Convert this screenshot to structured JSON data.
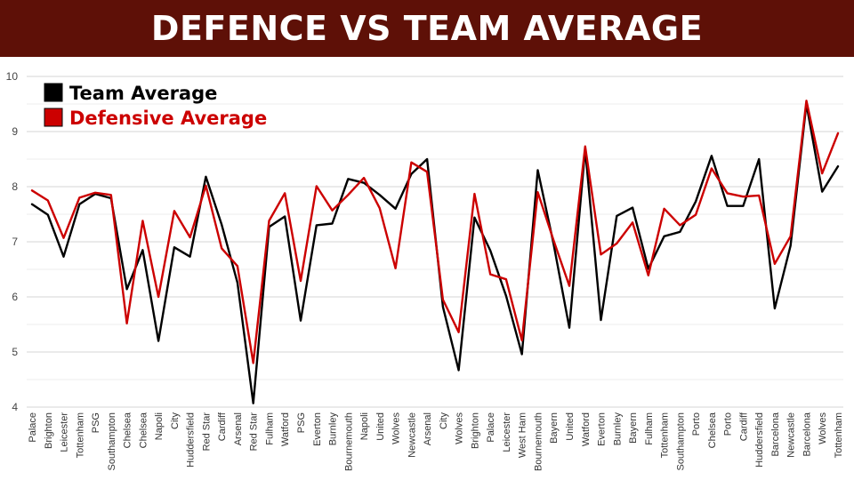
{
  "header": {
    "title": "DEFENCE VS TEAM AVERAGE"
  },
  "chart_data": {
    "type": "line",
    "title": "DEFENCE VS TEAM AVERAGE",
    "xlabel": "",
    "ylabel": "",
    "ylim": [
      4,
      10
    ],
    "yticks": [
      4,
      5,
      6,
      7,
      8,
      9,
      10
    ],
    "grid": true,
    "legend_position": "top-left",
    "categories": [
      "Palace",
      "Brighton",
      "Leicester",
      "Tottenham",
      "PSG",
      "Southampton",
      "Chelsea",
      "Chelsea",
      "Napoli",
      "City",
      "Huddersfield",
      "Red Star",
      "Cardiff",
      "Arsenal",
      "Red Star",
      "Fulham",
      "Watford",
      "PSG",
      "Everton",
      "Burnley",
      "Bournemouth",
      "Napoli",
      "United",
      "Wolves",
      "Newcastle",
      "Arsenal",
      "City",
      "Wolves",
      "Brighton",
      "Palace",
      "Leicester",
      "West Ham",
      "Bournemouth",
      "Bayern",
      "United",
      "Watford",
      "Everton",
      "Burnley",
      "Bayern",
      "Fulham",
      "Tottenham",
      "Southampton",
      "Porto",
      "Chelsea",
      "Porto",
      "Cardiff",
      "Huddersfield",
      "Barcelona",
      "Newcastle",
      "Barcelona",
      "Wolves",
      "Tottenham"
    ],
    "series": [
      {
        "name": "Team Average",
        "color": "#000000",
        "values": [
          7.68,
          7.49,
          6.73,
          7.68,
          7.87,
          7.79,
          6.14,
          6.85,
          5.2,
          6.9,
          6.73,
          8.18,
          7.31,
          6.26,
          4.07,
          7.27,
          7.46,
          5.57,
          7.3,
          7.33,
          8.14,
          8.07,
          7.85,
          7.6,
          8.23,
          8.5,
          5.82,
          4.67,
          7.44,
          6.84,
          6.02,
          4.96,
          8.3,
          6.97,
          5.44,
          8.68,
          5.58,
          7.47,
          7.62,
          6.51,
          7.1,
          7.18,
          7.73,
          8.56,
          7.65,
          7.65,
          8.5,
          5.79,
          6.93,
          9.5,
          7.91,
          8.37
        ]
      },
      {
        "name": "Defensive Average",
        "color": "#cc0000",
        "values": [
          7.93,
          7.75,
          7.07,
          7.8,
          7.89,
          7.85,
          5.52,
          7.38,
          6.0,
          7.56,
          7.08,
          8.02,
          6.88,
          6.56,
          4.8,
          7.38,
          7.88,
          6.29,
          8.01,
          7.57,
          7.85,
          8.16,
          7.61,
          6.52,
          8.44,
          8.27,
          5.95,
          5.36,
          7.87,
          6.41,
          6.32,
          5.21,
          7.9,
          7.03,
          6.2,
          8.73,
          6.77,
          6.97,
          7.35,
          6.39,
          7.6,
          7.3,
          7.49,
          8.33,
          7.88,
          7.82,
          7.84,
          6.6,
          7.1,
          9.56,
          8.24,
          8.97
        ]
      }
    ]
  }
}
